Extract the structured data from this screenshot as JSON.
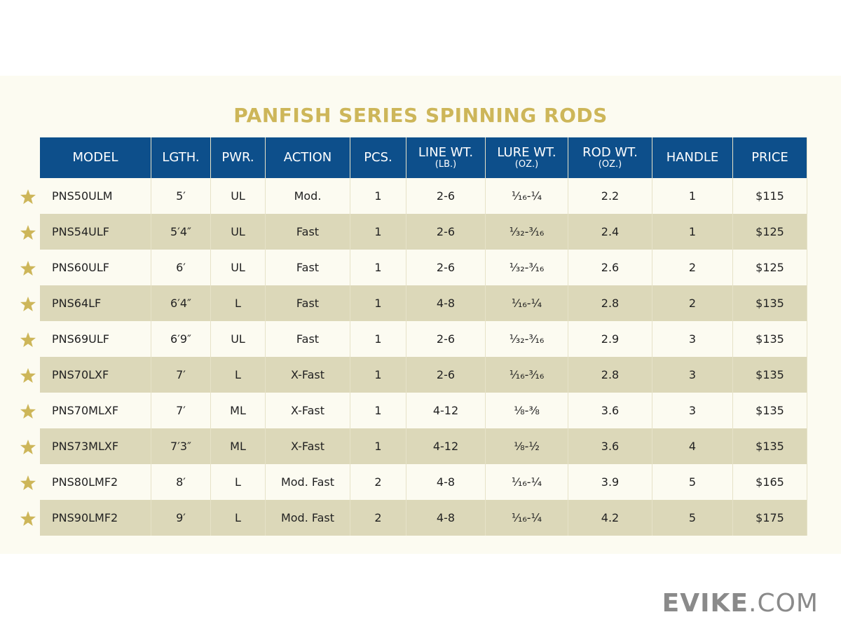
{
  "header": {
    "title": "PANFISH SERIES SPINNING RODS"
  },
  "table": {
    "columns": [
      {
        "label": "MODEL"
      },
      {
        "label": "LGTH."
      },
      {
        "label": "PWR."
      },
      {
        "label": "ACTION"
      },
      {
        "label": "PCS."
      },
      {
        "label": "LINE WT.",
        "unit": "(LB.)"
      },
      {
        "label": "LURE WT.",
        "unit": "(OZ.)"
      },
      {
        "label": "ROD WT.",
        "unit": "(OZ.)"
      },
      {
        "label": "HANDLE"
      },
      {
        "label": "PRICE"
      }
    ],
    "rows": [
      [
        "PNS50ULM",
        "5′",
        "UL",
        "Mod.",
        "1",
        "2-6",
        "¹⁄₁₆-¼",
        "2.2",
        "1",
        "$115"
      ],
      [
        "PNS54ULF",
        "5′4″",
        "UL",
        "Fast",
        "1",
        "2-6",
        "¹⁄₃₂-³⁄₁₆",
        "2.4",
        "1",
        "$125"
      ],
      [
        "PNS60ULF",
        "6′",
        "UL",
        "Fast",
        "1",
        "2-6",
        "¹⁄₃₂-³⁄₁₆",
        "2.6",
        "2",
        "$125"
      ],
      [
        "PNS64LF",
        "6′4″",
        "L",
        "Fast",
        "1",
        "4-8",
        "¹⁄₁₆-¼",
        "2.8",
        "2",
        "$135"
      ],
      [
        "PNS69ULF",
        "6′9″",
        "UL",
        "Fast",
        "1",
        "2-6",
        "¹⁄₃₂-³⁄₁₆",
        "2.9",
        "3",
        "$135"
      ],
      [
        "PNS70LXF",
        "7′",
        "L",
        "X-Fast",
        "1",
        "2-6",
        "¹⁄₁₆-³⁄₁₆",
        "2.8",
        "3",
        "$135"
      ],
      [
        "PNS70MLXF",
        "7′",
        "ML",
        "X-Fast",
        "1",
        "4-12",
        "⅛-⅜",
        "3.6",
        "3",
        "$135"
      ],
      [
        "PNS73MLXF",
        "7′3″",
        "ML",
        "X-Fast",
        "1",
        "4-12",
        "⅛-½",
        "3.6",
        "4",
        "$135"
      ],
      [
        "PNS80LMF2",
        "8′",
        "L",
        "Mod. Fast",
        "2",
        "4-8",
        "¹⁄₁₆-¼",
        "3.9",
        "5",
        "$165"
      ],
      [
        "PNS90LMF2",
        "9′",
        "L",
        "Mod. Fast",
        "2",
        "4-8",
        "¹⁄₁₆-¼",
        "4.2",
        "5",
        "$175"
      ]
    ]
  },
  "footer": {
    "brand": "EVIKE",
    "domain": ".COM"
  }
}
